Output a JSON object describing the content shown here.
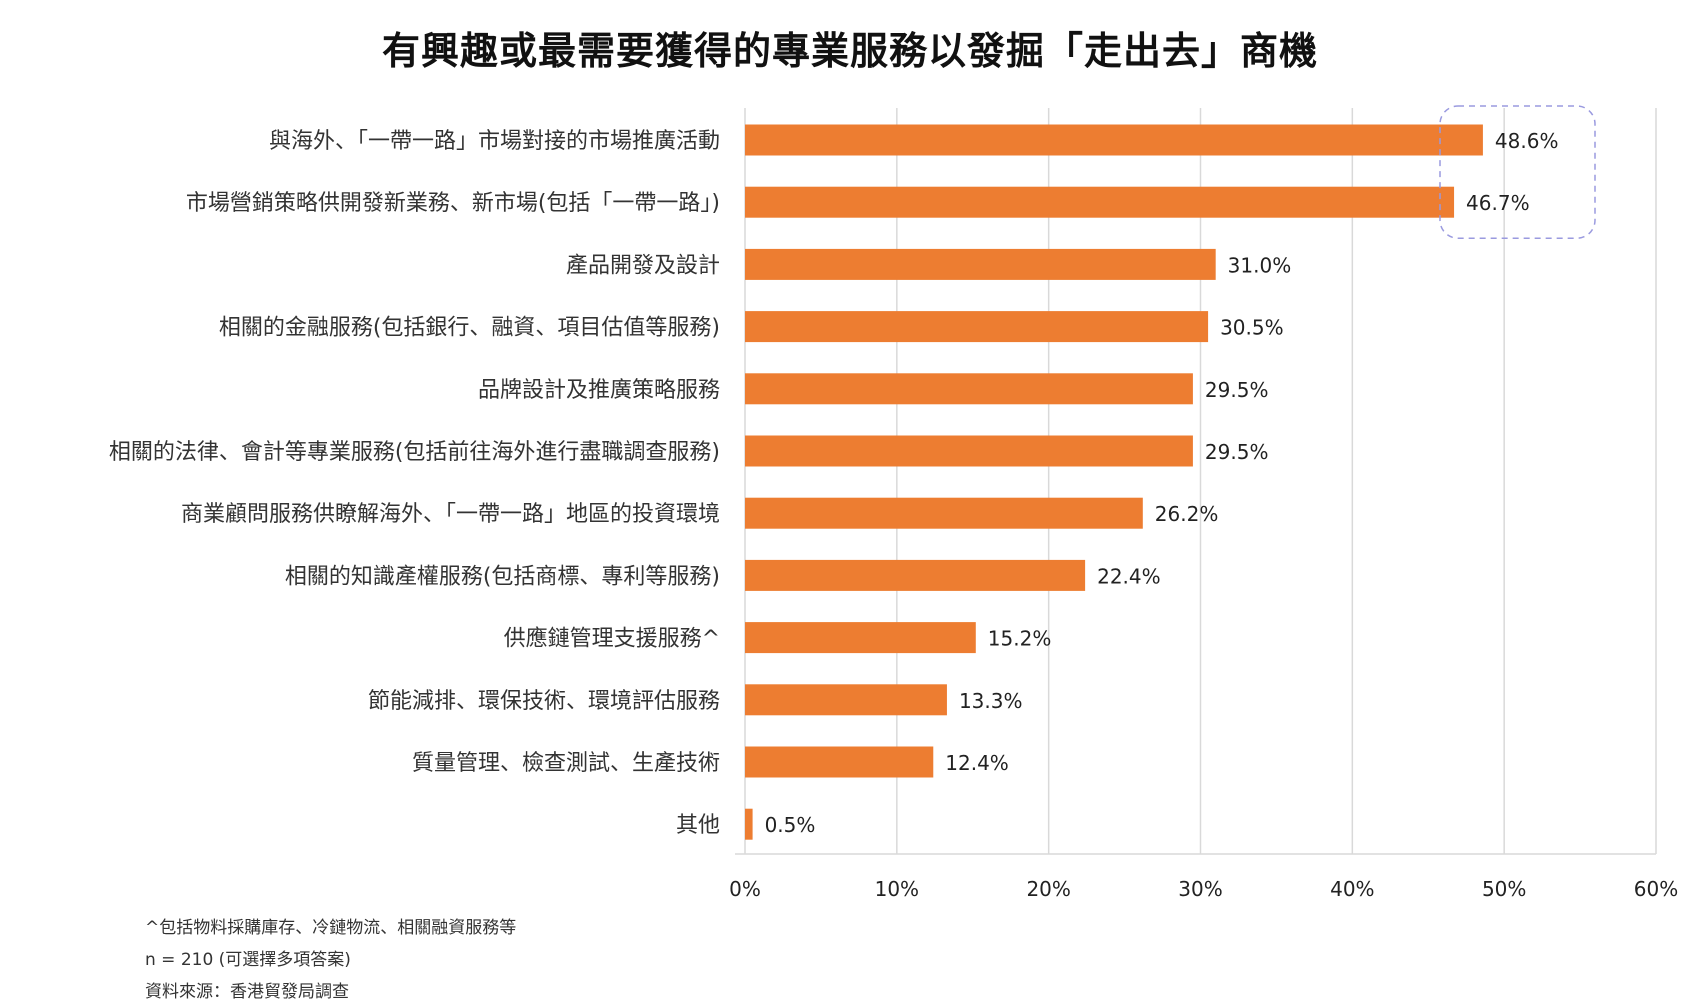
{
  "colors": {
    "bar": "#ED7D31",
    "grid": "#D9D9D9",
    "highlight": "#9A9ADF"
  },
  "chart_data": {
    "type": "bar",
    "orientation": "horizontal",
    "title": "有興趣或最需要獲得的專業服務以發掘「走出去」商機",
    "categories": [
      "與海外、「一帶一路」市場對接的市場推廣活動",
      "市場營銷策略供開發新業務、新市場(包括「一帶一路」)",
      "產品開發及設計",
      "相關的金融服務(包括銀行、融資、項目估值等服務)",
      "品牌設計及推廣策略服務",
      "相關的法律、會計等專業服務(包括前往海外進行盡職調查服務)",
      "商業顧問服務供瞭解海外、「一帶一路」地區的投資環境",
      "相關的知識產權服務(包括商標、專利等服務)",
      "供應鏈管理支援服務^",
      "節能減排、環保技術、環境評估服務",
      "質量管理、檢查測試、生產技術",
      "其他"
    ],
    "values": [
      48.6,
      46.7,
      31.0,
      30.5,
      29.5,
      29.5,
      26.2,
      22.4,
      15.2,
      13.3,
      12.4,
      0.5
    ],
    "value_labels": [
      "48.6%",
      "46.7%",
      "31.0%",
      "30.5%",
      "29.5%",
      "29.5%",
      "26.2%",
      "22.4%",
      "15.2%",
      "13.3%",
      "12.4%",
      "0.5%"
    ],
    "xlim": [
      0,
      60
    ],
    "ticks": [
      0,
      10,
      20,
      30,
      40,
      50,
      60
    ],
    "tick_labels": [
      "0%",
      "10%",
      "20%",
      "30%",
      "40%",
      "50%",
      "60%"
    ],
    "xlabel": "",
    "ylabel": "",
    "grid": "vertical",
    "legend": "none",
    "highlighted_categories": [
      0,
      1
    ]
  },
  "notes": {
    "footnote": "^包括物料採購庫存、冷鏈物流、相關融資服務等",
    "sample": "n = 210 (可選擇多項答案)",
    "source": "資料來源：香港貿發局調查"
  }
}
